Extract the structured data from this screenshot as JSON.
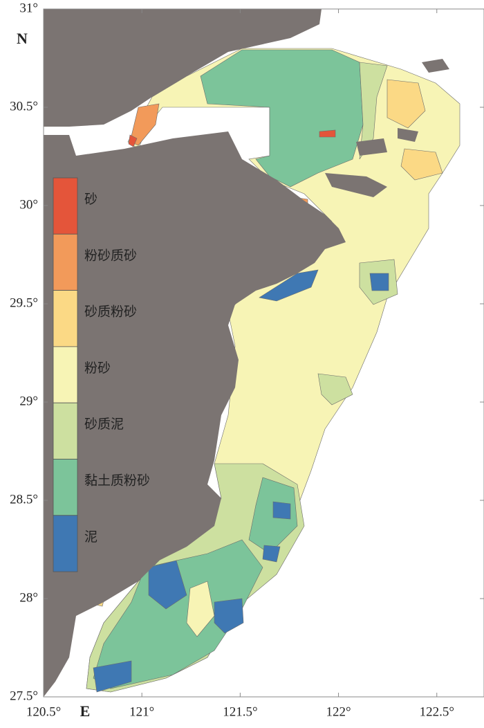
{
  "map": {
    "north_label": "N",
    "east_label": "E",
    "xlim": [
      120.5,
      122.74
    ],
    "ylim": [
      27.5,
      31
    ],
    "xticks": [
      {
        "value": 120.5,
        "label": "120.5°"
      },
      {
        "value": 121,
        "label": "121°"
      },
      {
        "value": 121.5,
        "label": "121.5°"
      },
      {
        "value": 122,
        "label": "122°"
      },
      {
        "value": 122.5,
        "label": "122.5°"
      }
    ],
    "yticks": [
      {
        "value": 27.5,
        "label": "27.5°"
      },
      {
        "value": 28,
        "label": "28°"
      },
      {
        "value": 28.5,
        "label": "28.5°"
      },
      {
        "value": 29,
        "label": "29°"
      },
      {
        "value": 29.5,
        "label": "29.5°"
      },
      {
        "value": 30,
        "label": "30°"
      },
      {
        "value": 30.5,
        "label": "30.5°"
      },
      {
        "value": 31,
        "label": "31°"
      }
    ],
    "legend": [
      {
        "label": "砂",
        "color": "#e4553a"
      },
      {
        "label": "粉砂质砂",
        "color": "#f29a5a"
      },
      {
        "label": "砂质粉砂",
        "color": "#fbd985"
      },
      {
        "label": "粉砂",
        "color": "#f7f4b5"
      },
      {
        "label": "砂质泥",
        "color": "#cde0a0"
      },
      {
        "label": "黏土质粉砂",
        "color": "#7cc49a"
      },
      {
        "label": "泥",
        "color": "#3f78b3"
      }
    ]
  }
}
